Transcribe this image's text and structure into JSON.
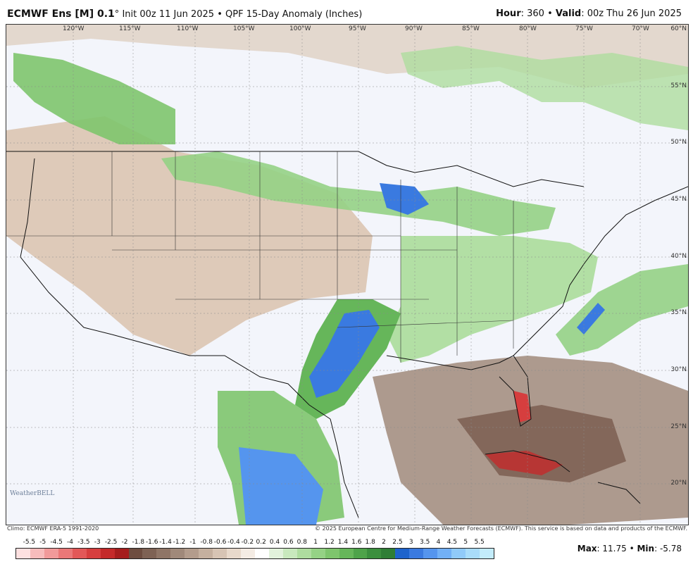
{
  "header": {
    "model": "ECMWF Ens [M] 0.1",
    "degree": "°",
    "init": "Init 00z 11 Jun 2025",
    "bullet": "•",
    "product": "QPF 15-Day Anomaly (Inches)",
    "hour_label": "Hour",
    "hour_value": ": 360 •",
    "valid_label": "Valid",
    "valid_value": ": 00z Thu 26 Jun 2025"
  },
  "map": {
    "lon_labels": [
      "120°W",
      "115°W",
      "110°W",
      "105°W",
      "100°W",
      "95°W",
      "90°W",
      "85°W",
      "80°W",
      "75°W",
      "70°W"
    ],
    "lat_labels": [
      "60°N",
      "55°N",
      "50°N",
      "45°N",
      "40°N",
      "35°N",
      "30°N",
      "25°N",
      "20°N"
    ],
    "logo": "WeatherBELL"
  },
  "credits": {
    "climo": "Climo: ECMWF ERA-5 1991-2020",
    "copyright": "© 2025 European Centre for Medium-Range Weather Forecasts (ECMWF). This service is based on data and products of the ECMWF."
  },
  "colorbar": {
    "labels": [
      "-5.5",
      "-5",
      "-4.5",
      "-4",
      "-3.5",
      "-3",
      "-2.5",
      "-2",
      "-1.8",
      "-1.6",
      "-1.4",
      "-1.2",
      "-1",
      "-0.8",
      "-0.6",
      "-0.4",
      "-0.2",
      "0.2",
      "0.4",
      "0.6",
      "0.8",
      "1",
      "1.2",
      "1.4",
      "1.6",
      "1.8",
      "2",
      "2.5",
      "3",
      "3.5",
      "4",
      "4.5",
      "5",
      "5.5"
    ],
    "colors": [
      "#fde0e0",
      "#f7bcbc",
      "#f19a9a",
      "#ea7878",
      "#e25858",
      "#d63e3e",
      "#c42a2a",
      "#a51d1d",
      "#6e4d40",
      "#7e6254",
      "#8f7566",
      "#a0897a",
      "#b39c8c",
      "#c5b09f",
      "#d7c4b4",
      "#e8d9cb",
      "#f4ece4",
      "#ffffff",
      "#e2f2dc",
      "#c8e9bd",
      "#aedd9f",
      "#95d285",
      "#7ec56d",
      "#66b65a",
      "#4ea34a",
      "#3b8f3e",
      "#2f7e36",
      "#1e63cc",
      "#3a7ae0",
      "#5595ee",
      "#72b0f6",
      "#90caf9",
      "#a9dcfa",
      "#c3ecfb"
    ],
    "max_label": "Max",
    "max_value": ": 11.75 •",
    "min_label": "Min",
    "min_value": ": -5.78"
  }
}
